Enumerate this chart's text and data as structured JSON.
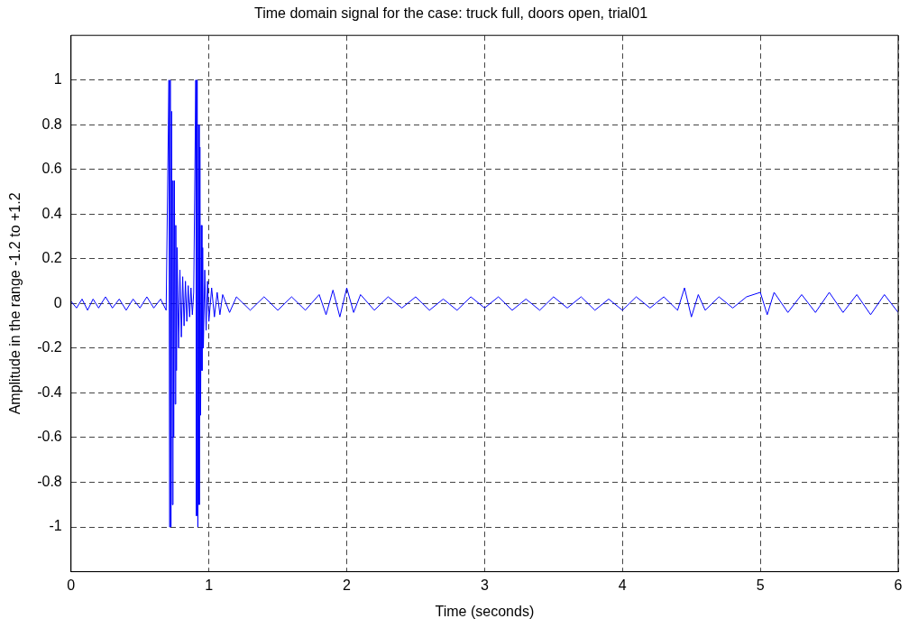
{
  "chart_data": {
    "type": "line",
    "title": "Time domain signal for the case: truck full, doors open, trial01",
    "xlabel": "Time (seconds)",
    "ylabel": "Amplitude in the range -1.2 to +1.2",
    "xlim": [
      0,
      6
    ],
    "xticks": [
      0,
      1,
      2,
      3,
      4,
      5,
      6
    ],
    "ylim": [
      -1.2,
      1.2
    ],
    "yticks": [
      -1,
      -0.8,
      -0.6,
      -0.4,
      -0.2,
      0,
      0.2,
      0.4,
      0.6,
      0.8,
      1
    ],
    "grid": true,
    "legend": false,
    "marker": "none",
    "line_style": "solid",
    "series": [
      {
        "color": "#0000ff",
        "x": [
          0,
          0.04,
          0.08,
          0.12,
          0.16,
          0.2,
          0.25,
          0.3,
          0.35,
          0.4,
          0.45,
          0.5,
          0.55,
          0.6,
          0.65,
          0.69,
          0.71,
          0.715,
          0.72,
          0.725,
          0.73,
          0.735,
          0.74,
          0.745,
          0.75,
          0.755,
          0.76,
          0.765,
          0.77,
          0.78,
          0.79,
          0.8,
          0.81,
          0.82,
          0.83,
          0.84,
          0.85,
          0.86,
          0.87,
          0.88,
          0.89,
          0.905,
          0.91,
          0.915,
          0.92,
          0.925,
          0.93,
          0.935,
          0.94,
          0.945,
          0.95,
          0.955,
          0.96,
          0.97,
          0.98,
          0.99,
          1.0,
          1.02,
          1.04,
          1.06,
          1.08,
          1.1,
          1.15,
          1.2,
          1.3,
          1.4,
          1.5,
          1.6,
          1.7,
          1.8,
          1.85,
          1.9,
          1.95,
          2.0,
          2.05,
          2.1,
          2.2,
          2.3,
          2.4,
          2.5,
          2.6,
          2.7,
          2.8,
          2.9,
          3.0,
          3.1,
          3.2,
          3.3,
          3.4,
          3.5,
          3.6,
          3.7,
          3.8,
          3.9,
          4.0,
          4.1,
          4.2,
          4.3,
          4.4,
          4.45,
          4.5,
          4.55,
          4.6,
          4.7,
          4.8,
          4.9,
          5.0,
          5.05,
          5.1,
          5.2,
          5.3,
          5.4,
          5.5,
          5.6,
          5.7,
          5.8,
          5.9,
          6.0
        ],
        "values": [
          0.01,
          -0.02,
          0.02,
          -0.03,
          0.02,
          -0.02,
          0.03,
          -0.02,
          0.02,
          -0.03,
          0.02,
          -0.02,
          0.03,
          -0.02,
          0.02,
          -0.03,
          1,
          -1,
          1,
          -1,
          0.86,
          -0.9,
          0.55,
          -0.6,
          0.55,
          -0.45,
          0.35,
          -0.3,
          0.25,
          -0.2,
          0.15,
          -0.15,
          0.12,
          -0.1,
          0.1,
          -0.08,
          0.08,
          -0.06,
          0.07,
          -0.05,
          0.05,
          1,
          -0.95,
          1,
          -1,
          0.8,
          -0.9,
          0.7,
          -0.5,
          0.35,
          -0.3,
          0.25,
          -0.2,
          0.15,
          -0.12,
          0.1,
          -0.08,
          0.07,
          -0.06,
          0.05,
          -0.05,
          0.04,
          -0.04,
          0.03,
          -0.03,
          0.03,
          -0.03,
          0.03,
          -0.03,
          0.04,
          -0.05,
          0.06,
          -0.06,
          0.07,
          -0.04,
          0.04,
          -0.03,
          0.03,
          -0.02,
          0.03,
          -0.03,
          0.02,
          -0.03,
          0.03,
          -0.02,
          0.03,
          -0.03,
          0.02,
          -0.03,
          0.03,
          -0.02,
          0.03,
          -0.03,
          0.02,
          -0.03,
          0.03,
          -0.02,
          0.03,
          -0.03,
          0.07,
          -0.06,
          0.04,
          -0.03,
          0.03,
          -0.02,
          0.03,
          0.05,
          -0.05,
          0.05,
          -0.04,
          0.04,
          -0.04,
          0.05,
          -0.04,
          0.04,
          -0.05,
          0.04,
          -0.04
        ]
      }
    ]
  }
}
